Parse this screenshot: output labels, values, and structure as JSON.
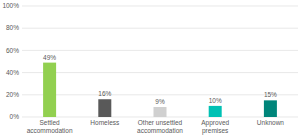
{
  "chart_data": {
    "type": "bar",
    "categories": [
      "Settled accommodation",
      "Homeless",
      "Other unsettled accommodation",
      "Approved premises",
      "Unknown"
    ],
    "values": [
      49,
      16,
      9,
      10,
      15
    ],
    "value_labels": [
      "49%",
      "16%",
      "9%",
      "10%",
      "15%"
    ],
    "data_labels": true,
    "colors": [
      "#92d050",
      "#595959",
      "#d0d0d0",
      "#00c1b4",
      "#00857a"
    ],
    "ylim": [
      0,
      100
    ],
    "yticks": [
      {
        "value": 0,
        "label": "0%"
      },
      {
        "value": 20,
        "label": "20%"
      },
      {
        "value": 40,
        "label": "40%"
      },
      {
        "value": 60,
        "label": "60%"
      },
      {
        "value": 80,
        "label": "80%"
      },
      {
        "value": 100,
        "label": "100%"
      }
    ],
    "grid": true
  }
}
